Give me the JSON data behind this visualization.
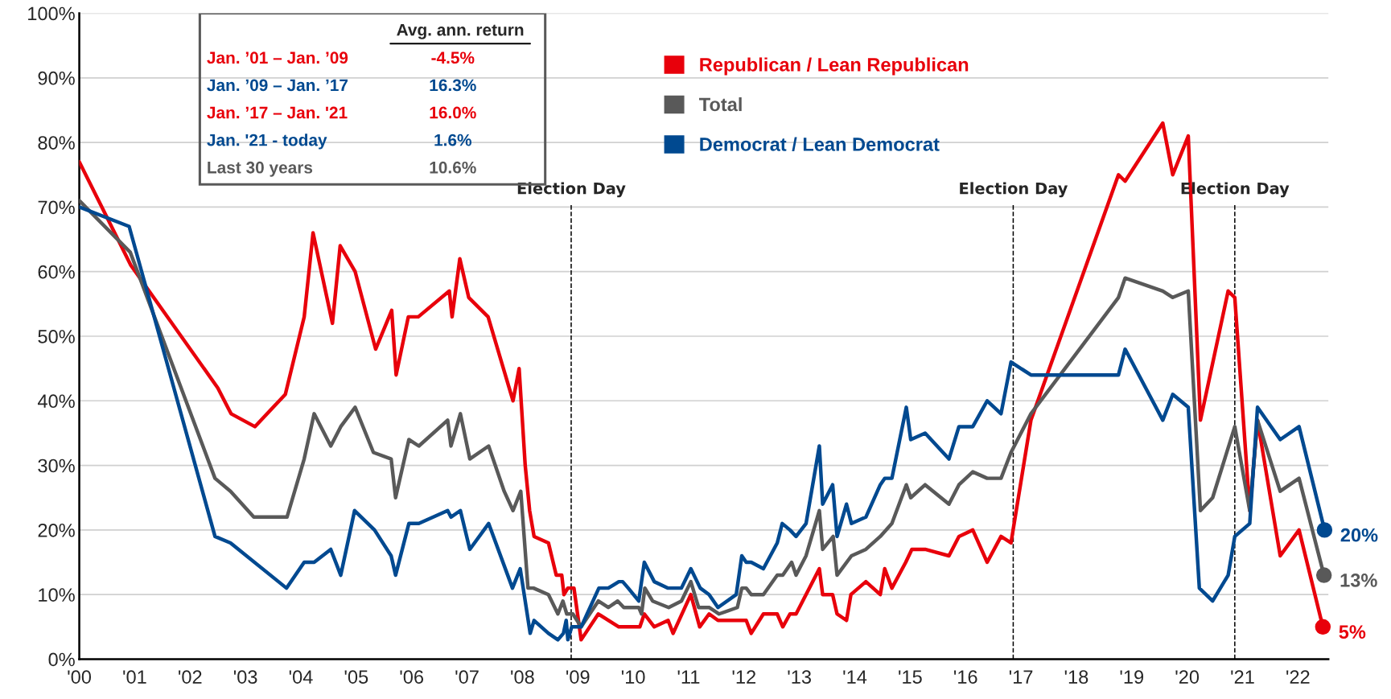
{
  "chart_data": {
    "type": "line",
    "xlim": [
      2000,
      2022.55
    ],
    "ylim": [
      0,
      100
    ],
    "xticks": [
      {
        "value": 2000,
        "label": "'00"
      },
      {
        "value": 2001,
        "label": "'01"
      },
      {
        "value": 2002,
        "label": "'02"
      },
      {
        "value": 2003,
        "label": "'03"
      },
      {
        "value": 2004,
        "label": "'04"
      },
      {
        "value": 2005,
        "label": "'05"
      },
      {
        "value": 2006,
        "label": "'06"
      },
      {
        "value": 2007,
        "label": "'07"
      },
      {
        "value": 2008,
        "label": "'08"
      },
      {
        "value": 2009,
        "label": "'09"
      },
      {
        "value": 2010,
        "label": "'10"
      },
      {
        "value": 2011,
        "label": "'11"
      },
      {
        "value": 2012,
        "label": "'12"
      },
      {
        "value": 2013,
        "label": "'13"
      },
      {
        "value": 2014,
        "label": "'14"
      },
      {
        "value": 2015,
        "label": "'15"
      },
      {
        "value": 2016,
        "label": "'16"
      },
      {
        "value": 2017,
        "label": "'17"
      },
      {
        "value": 2018,
        "label": "'18"
      },
      {
        "value": 2019,
        "label": "'19"
      },
      {
        "value": 2020,
        "label": "'20"
      },
      {
        "value": 2021,
        "label": "'21"
      },
      {
        "value": 2022,
        "label": "'22"
      }
    ],
    "yticks": [
      {
        "value": 0,
        "label": "0%"
      },
      {
        "value": 10,
        "label": "10%"
      },
      {
        "value": 20,
        "label": "20%"
      },
      {
        "value": 30,
        "label": "30%"
      },
      {
        "value": 40,
        "label": "40%"
      },
      {
        "value": 50,
        "label": "50%"
      },
      {
        "value": 60,
        "label": "60%"
      },
      {
        "value": 70,
        "label": "70%"
      },
      {
        "value": 80,
        "label": "80%"
      },
      {
        "value": 90,
        "label": "90%"
      },
      {
        "value": 100,
        "label": "100%"
      }
    ],
    "grid": "y",
    "legend": "top",
    "line_style": "solid",
    "series": [
      {
        "name": "Republican / Lean Republican",
        "color": "#e8000b",
        "x": [
          2000.0,
          2000.93,
          2002.5,
          2002.74,
          2003.17,
          2003.72,
          2004.06,
          2004.22,
          2004.57,
          2004.71,
          2004.98,
          2005.35,
          2005.64,
          2005.72,
          2005.94,
          2006.12,
          2006.68,
          2006.73,
          2006.87,
          2007.03,
          2007.38,
          2007.83,
          2007.94,
          2008.05,
          2008.13,
          2008.21,
          2008.47,
          2008.61,
          2008.71,
          2008.75,
          2008.82,
          2008.93,
          2009.06,
          2009.37,
          2009.74,
          2010.12,
          2010.2,
          2010.38,
          2010.63,
          2010.72,
          2011.04,
          2011.2,
          2011.37,
          2011.53,
          2012.04,
          2012.13,
          2012.35,
          2012.6,
          2012.7,
          2012.83,
          2012.94,
          2013.36,
          2013.42,
          2013.6,
          2013.68,
          2013.85,
          2013.93,
          2014.2,
          2014.46,
          2014.54,
          2014.67,
          2014.92,
          2015.03,
          2015.27,
          2015.7,
          2015.88,
          2016.13,
          2016.39,
          2016.64,
          2016.82,
          2017.18,
          2018.76,
          2018.88,
          2019.56,
          2019.74,
          2020.02,
          2020.24,
          2020.74,
          2020.86,
          2021.13,
          2021.27,
          2021.68,
          2022.02,
          2022.45
        ],
        "values": [
          77,
          61,
          42,
          38,
          36,
          41,
          53,
          66,
          52,
          64,
          60,
          48,
          54,
          44,
          53,
          53,
          57,
          53,
          62,
          56,
          53,
          40,
          45,
          30,
          23,
          19,
          18,
          13,
          13,
          10,
          11,
          11,
          3,
          7,
          5,
          5,
          7,
          5,
          6,
          4,
          10,
          5,
          7,
          6,
          6,
          4,
          7,
          7,
          5,
          7,
          7,
          14,
          10,
          10,
          7,
          6,
          10,
          12,
          10,
          14,
          11,
          15,
          17,
          17,
          16,
          19,
          20,
          15,
          19,
          18,
          37,
          75,
          74,
          83,
          75,
          81,
          37,
          57,
          56,
          23,
          37,
          16,
          20,
          5
        ],
        "value_labels": [
          null,
          null,
          null,
          null,
          null,
          null,
          null,
          null,
          null,
          null,
          null,
          null,
          null,
          null,
          null,
          null,
          null,
          null,
          null,
          null,
          null,
          null,
          null,
          null,
          null,
          null,
          null,
          null,
          null,
          null,
          null,
          null,
          null,
          null,
          null,
          null,
          null,
          null,
          null,
          null,
          null,
          null,
          null,
          null,
          null,
          null,
          null,
          null,
          null,
          null,
          null,
          null,
          null,
          null,
          null,
          null,
          null,
          null,
          null,
          null,
          null,
          null,
          null,
          null,
          null,
          null,
          null,
          null,
          null,
          null,
          null,
          null,
          null,
          null,
          null,
          null,
          null,
          null,
          null,
          null,
          null,
          null,
          null,
          "5%"
        ]
      },
      {
        "name": "Total",
        "color": "#595959",
        "x": [
          2000,
          2000.92,
          2002.45,
          2002.73,
          2003.15,
          2003.75,
          2004.06,
          2004.24,
          2004.54,
          2004.72,
          2004.98,
          2005.31,
          2005.63,
          2005.71,
          2005.95,
          2006.13,
          2006.65,
          2006.71,
          2006.88,
          2007.05,
          2007.39,
          2007.67,
          2007.83,
          2007.97,
          2008.1,
          2008.2,
          2008.47,
          2008.64,
          2008.73,
          2008.8,
          2008.91,
          2009.06,
          2009.37,
          2009.55,
          2009.72,
          2009.83,
          2010.1,
          2010.15,
          2010.21,
          2010.35,
          2010.64,
          2010.87,
          2011.04,
          2011.18,
          2011.37,
          2011.55,
          2011.88,
          2011.96,
          2012.04,
          2012.13,
          2012.35,
          2012.6,
          2012.7,
          2012.86,
          2012.94,
          2013.12,
          2013.36,
          2013.42,
          2013.61,
          2013.68,
          2013.94,
          2014.2,
          2014.46,
          2014.67,
          2014.93,
          2015.01,
          2015.27,
          2015.7,
          2015.88,
          2016.13,
          2016.39,
          2016.64,
          2016.82,
          2017.18,
          2018.76,
          2018.88,
          2019.56,
          2019.74,
          2020.02,
          2020.24,
          2020.46,
          2020.86,
          2021.13,
          2021.27,
          2021.68,
          2022.02,
          2022.47
        ],
        "values": [
          71,
          63,
          28,
          26,
          22,
          22,
          31,
          38,
          33,
          36,
          39,
          32,
          31,
          25,
          34,
          33,
          37,
          33,
          38,
          31,
          33,
          26,
          23,
          26,
          11,
          11,
          10,
          7,
          9,
          7,
          7,
          5,
          9,
          8,
          9,
          8,
          8,
          7,
          11,
          9,
          8,
          9,
          12,
          8,
          8,
          7,
          8,
          11,
          11,
          10,
          10,
          13,
          13,
          15,
          13,
          16,
          23,
          17,
          19,
          13,
          16,
          17,
          19,
          21,
          27,
          25,
          27,
          24,
          27,
          29,
          28,
          28,
          32,
          38,
          56,
          59,
          57,
          56,
          57,
          23,
          25,
          36,
          23,
          37,
          26,
          28,
          13
        ],
        "value_labels": [
          null,
          null,
          null,
          null,
          null,
          null,
          null,
          null,
          null,
          null,
          null,
          null,
          null,
          null,
          null,
          null,
          null,
          null,
          null,
          null,
          null,
          null,
          null,
          null,
          null,
          null,
          null,
          null,
          null,
          null,
          null,
          null,
          null,
          null,
          null,
          null,
          null,
          null,
          null,
          null,
          null,
          null,
          null,
          null,
          null,
          null,
          null,
          null,
          null,
          null,
          null,
          null,
          null,
          null,
          null,
          null,
          null,
          null,
          null,
          null,
          null,
          null,
          null,
          null,
          null,
          null,
          null,
          null,
          null,
          null,
          null,
          null,
          null,
          null,
          null,
          null,
          null,
          null,
          null,
          null,
          null,
          null,
          null,
          null,
          null,
          null,
          "13%"
        ]
      },
      {
        "name": "Democrat / Lean Democrat",
        "color": "#004990",
        "x": [
          2000,
          2000.9,
          2002.45,
          2002.73,
          2003.74,
          2004.06,
          2004.24,
          2004.54,
          2004.72,
          2004.97,
          2005.33,
          2005.63,
          2005.71,
          2005.95,
          2006.13,
          2006.65,
          2006.71,
          2006.88,
          2007.05,
          2007.39,
          2007.82,
          2007.96,
          2008.14,
          2008.21,
          2008.47,
          2008.64,
          2008.74,
          2008.79,
          2008.82,
          2008.89,
          2009.06,
          2009.38,
          2009.55,
          2009.74,
          2009.81,
          2009.91,
          2010.1,
          2010.2,
          2010.38,
          2010.63,
          2010.87,
          2011.04,
          2011.21,
          2011.37,
          2011.53,
          2011.86,
          2011.96,
          2012.04,
          2012.13,
          2012.35,
          2012.6,
          2012.69,
          2012.83,
          2012.94,
          2013.12,
          2013.36,
          2013.42,
          2013.6,
          2013.68,
          2013.85,
          2013.94,
          2014.2,
          2014.46,
          2014.54,
          2014.67,
          2014.93,
          2015.01,
          2015.27,
          2015.7,
          2015.88,
          2016.13,
          2016.39,
          2016.64,
          2016.82,
          2017.18,
          2018.76,
          2018.88,
          2019.56,
          2019.74,
          2020.02,
          2020.22,
          2020.46,
          2020.74,
          2020.86,
          2021.13,
          2021.27,
          2021.68,
          2022.02,
          2022.48
        ],
        "values": [
          70,
          67,
          19,
          18,
          11,
          15,
          15,
          17,
          13,
          23,
          20,
          16,
          13,
          21,
          21,
          23,
          22,
          23,
          17,
          21,
          11,
          14,
          4,
          6,
          4,
          3,
          4,
          6,
          3,
          5,
          5,
          11,
          11,
          12,
          12,
          11,
          9,
          15,
          12,
          11,
          11,
          14,
          11,
          10,
          8,
          10,
          16,
          15,
          15,
          14,
          18,
          21,
          20,
          19,
          21,
          33,
          24,
          27,
          19,
          24,
          21,
          22,
          27,
          28,
          28,
          39,
          34,
          35,
          31,
          36,
          36,
          40,
          38,
          46,
          44,
          44,
          48,
          37,
          41,
          39,
          11,
          9,
          13,
          19,
          21,
          39,
          34,
          36,
          20
        ],
        "value_labels": [
          null,
          null,
          null,
          null,
          null,
          null,
          null,
          null,
          null,
          null,
          null,
          null,
          null,
          null,
          null,
          null,
          null,
          null,
          null,
          null,
          null,
          null,
          null,
          null,
          null,
          null,
          null,
          null,
          null,
          null,
          null,
          null,
          null,
          null,
          null,
          null,
          null,
          null,
          null,
          null,
          null,
          null,
          null,
          null,
          null,
          null,
          null,
          null,
          null,
          null,
          null,
          null,
          null,
          null,
          null,
          null,
          null,
          null,
          null,
          null,
          null,
          null,
          null,
          null,
          null,
          null,
          null,
          null,
          null,
          null,
          null,
          null,
          null,
          null,
          null,
          null,
          null,
          null,
          null,
          null,
          null,
          null,
          null,
          null,
          null,
          null,
          null,
          null,
          "20%"
        ]
      }
    ],
    "ref_lines": [
      {
        "axis": "x",
        "value": 2008.88,
        "label": "Election Day",
        "color": "#000000",
        "line_style": "dashed"
      },
      {
        "axis": "x",
        "value": 2016.86,
        "label": "Election Day",
        "color": "#000000",
        "line_style": "dashed"
      },
      {
        "axis": "x",
        "value": 2020.86,
        "label": "Election Day",
        "color": "#000000",
        "line_style": "dashed"
      }
    ],
    "annotations": [
      "Avg. ann. return",
      "Jan. ’01 – Jan. ’09",
      "-4.5%",
      "Jan. ’09 – Jan. ’17",
      "16.3%",
      "Jan. ’17 – Jan. '21",
      "16.0%",
      "Jan. '21 - today",
      "1.6%",
      "Last 30 years",
      "10.6%"
    ]
  }
}
